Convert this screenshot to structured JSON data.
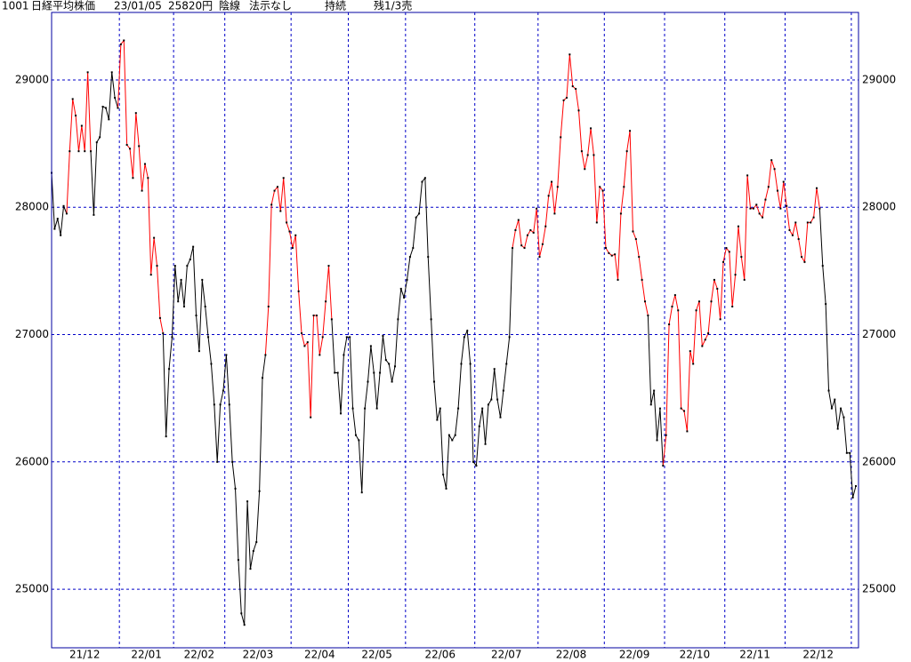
{
  "chart_data": {
    "type": "line",
    "header": [
      "1001",
      "日経平均株価",
      "23/01/05",
      "25820円",
      "陰線",
      "法示なし",
      "持続",
      "残1/3売"
    ],
    "ylim": [
      24540,
      29530
    ],
    "yticks": [
      25000,
      26000,
      27000,
      28000,
      29000
    ],
    "grid": true,
    "colors": {
      "r": "#ff0000",
      "k": "#000000",
      "frame": "#0000a0",
      "grid": "#0000c8",
      "dot": "#000000"
    },
    "months": [
      {
        "label": "21/12",
        "trend": "kkkkkkrrrrrrrrkkkkkkkkk",
        "values": [
          28270,
          27830,
          27910,
          27780,
          28010,
          27950,
          28440,
          28850,
          28720,
          28440,
          28640,
          28440,
          29060,
          28440,
          27940,
          28510,
          28550,
          28790,
          28780,
          28690,
          29060,
          28860,
          28780
        ]
      },
      {
        "label": "22/01",
        "trend": "rrrrrrrrrrrrrrrkkk",
        "values": [
          29280,
          29310,
          28490,
          28460,
          28230,
          28740,
          28480,
          28130,
          28340,
          28230,
          27470,
          27760,
          27540,
          27130,
          27010,
          26200,
          26730,
          26980
        ]
      },
      {
        "label": "22/02",
        "trend": "kkkkkkkkkkkkkkkkk",
        "values": [
          27540,
          27260,
          27430,
          27220,
          27540,
          27590,
          27690,
          27150,
          26870,
          27430,
          27220,
          26980,
          26770,
          26450,
          26000,
          26450,
          26560
        ]
      },
      {
        "label": "22/03",
        "trend": "kkkkkkkkkkkkkkrrrrrrrr",
        "values": [
          26840,
          26450,
          26000,
          25790,
          25230,
          24810,
          24720,
          25690,
          25160,
          25300,
          25370,
          25770,
          26660,
          26840,
          27220,
          28020,
          28130,
          28160,
          27970,
          28230,
          27880,
          27810
        ]
      },
      {
        "label": "22/04",
        "trend": "rrrrrrrrrrrrrrkkkkk",
        "values": [
          27680,
          27780,
          27340,
          27010,
          26910,
          26940,
          26350,
          27150,
          27150,
          26840,
          26980,
          27260,
          27540,
          27120,
          26700,
          26700,
          26380,
          26840,
          26980
        ]
      },
      {
        "label": "22/05",
        "trend": "kkkkkkkkkkkkkkkkkkk",
        "values": [
          26980,
          26420,
          26210,
          26170,
          25760,
          26420,
          26630,
          26910,
          26700,
          26420,
          26700,
          26990,
          26800,
          26770,
          26630,
          26750,
          27120,
          27360,
          27290
        ]
      },
      {
        "label": "22/06",
        "trend": "kkkkkkkkkkkkkkkkkkkkkkk",
        "values": [
          27430,
          27610,
          27680,
          27920,
          27950,
          28200,
          28230,
          27610,
          27120,
          26630,
          26330,
          26420,
          25900,
          25790,
          26210,
          26170,
          26210,
          26420,
          26770,
          26980,
          27030,
          26770,
          26000
        ]
      },
      {
        "label": "22/07",
        "trend": "kkkkkkkkkkkkkrrrrrrrr",
        "values": [
          25970,
          26280,
          26420,
          26140,
          26450,
          26490,
          26730,
          26490,
          26350,
          26560,
          26770,
          26980,
          27680,
          27820,
          27900,
          27700,
          27680,
          27780,
          27820,
          27800,
          27990
        ]
      },
      {
        "label": "22/08",
        "trend": "rrrrrrrrrrrrrrrrrrrrrr",
        "values": [
          27610,
          27710,
          27850,
          28090,
          28200,
          27950,
          28160,
          28550,
          28840,
          28860,
          29200,
          28950,
          28930,
          28760,
          28440,
          28300,
          28410,
          28620,
          28410,
          27880,
          28160,
          28130
        ]
      },
      {
        "label": "22/09",
        "trend": "rrrrrrrrrrrrrrrkkkkk",
        "values": [
          27680,
          27640,
          27620,
          27630,
          27430,
          27950,
          28160,
          28440,
          28600,
          27810,
          27750,
          27610,
          27430,
          27260,
          27150,
          26450,
          26560,
          26170,
          26420,
          25970
        ]
      },
      {
        "label": "22/10",
        "trend": "rrrrrrrrrrrrrrrrrrrr",
        "values": [
          26210,
          27080,
          27220,
          27310,
          27190,
          26420,
          26400,
          26240,
          26870,
          26770,
          27190,
          27260,
          26910,
          26960,
          27010,
          27260,
          27430,
          27360,
          27120,
          27570
        ]
      },
      {
        "label": "22/11",
        "trend": "rrrrrrrrrrrrrrrrrrrr",
        "values": [
          27680,
          27650,
          27220,
          27470,
          27850,
          27610,
          27430,
          28250,
          27990,
          27990,
          28020,
          27950,
          27920,
          28060,
          28160,
          28370,
          28300,
          28130,
          27990,
          28200
        ]
      },
      {
        "label": "22/12",
        "trend": "rrrrrrrrrrrrkkkkkkkkkk",
        "values": [
          28010,
          27820,
          27780,
          27880,
          27750,
          27610,
          27570,
          27880,
          27880,
          27920,
          28150,
          27990,
          27540,
          27240,
          26560,
          26420,
          26490,
          26260,
          26420,
          26350,
          26070,
          26070
        ]
      },
      {
        "label": null,
        "trend": "kk",
        "values": [
          25720,
          25810
        ]
      }
    ]
  }
}
